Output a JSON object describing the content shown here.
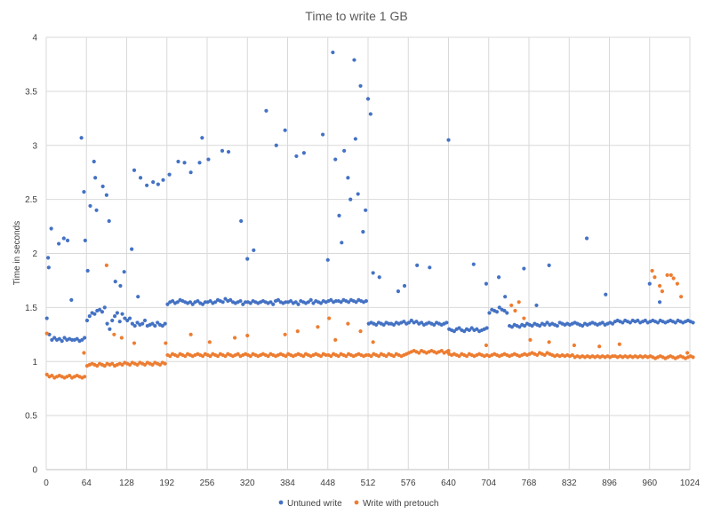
{
  "chart_data": {
    "type": "scatter",
    "title": "Time to write 1 GB",
    "xlabel": "",
    "ylabel": "Time in seconds",
    "xlim": [
      0,
      1024
    ],
    "ylim": [
      0,
      4
    ],
    "x_ticks": [
      "0",
      "64",
      "128",
      "192",
      "256",
      "320",
      "384",
      "448",
      "512",
      "576",
      "640",
      "704",
      "768",
      "832",
      "896",
      "960",
      "1024"
    ],
    "y_ticks": [
      "0",
      "0.5",
      "1",
      "1.5",
      "2",
      "2.5",
      "3",
      "3.5",
      "4"
    ],
    "grid": true,
    "legend_position": "bottom",
    "colors": {
      "untuned": "#4472c4",
      "pretouch": "#ed7d31",
      "grid": "#d9d9d9",
      "axis": "#bfbfbf"
    },
    "sample_step": 4,
    "series": [
      {
        "name": "Untuned write",
        "key": "untuned",
        "values": [
          1.4,
          1.25,
          1.2,
          1.22,
          1.2,
          1.21,
          1.19,
          1.22,
          1.2,
          1.21,
          1.2,
          1.2,
          1.21,
          1.19,
          1.2,
          1.22,
          1.38,
          1.42,
          1.45,
          1.44,
          1.47,
          1.48,
          1.46,
          1.5,
          1.35,
          1.3,
          1.38,
          1.42,
          1.45,
          1.37,
          1.44,
          1.4,
          1.38,
          1.4,
          1.35,
          1.33,
          1.36,
          1.34,
          1.35,
          1.38,
          1.33,
          1.34,
          1.35,
          1.33,
          1.36,
          1.34,
          1.33,
          1.35,
          1.53,
          1.55,
          1.56,
          1.54,
          1.55,
          1.57,
          1.56,
          1.55,
          1.54,
          1.55,
          1.53,
          1.55,
          1.56,
          1.54,
          1.53,
          1.55,
          1.55,
          1.56,
          1.54,
          1.55,
          1.57,
          1.56,
          1.55,
          1.58,
          1.56,
          1.57,
          1.55,
          1.54,
          1.55,
          1.56,
          1.53,
          1.55,
          1.55,
          1.54,
          1.56,
          1.55,
          1.54,
          1.55,
          1.56,
          1.55,
          1.54,
          1.55,
          1.53,
          1.56,
          1.57,
          1.55,
          1.54,
          1.55,
          1.55,
          1.56,
          1.54,
          1.55,
          1.53,
          1.56,
          1.55,
          1.54,
          1.55,
          1.57,
          1.54,
          1.56,
          1.55,
          1.54,
          1.56,
          1.55,
          1.56,
          1.57,
          1.55,
          1.56,
          1.56,
          1.55,
          1.57,
          1.56,
          1.55,
          1.57,
          1.56,
          1.55,
          1.57,
          1.56,
          1.55,
          1.56,
          1.35,
          1.36,
          1.35,
          1.34,
          1.36,
          1.35,
          1.34,
          1.36,
          1.35,
          1.35,
          1.34,
          1.36,
          1.35,
          1.36,
          1.37,
          1.35,
          1.36,
          1.38,
          1.36,
          1.37,
          1.35,
          1.36,
          1.34,
          1.35,
          1.36,
          1.35,
          1.34,
          1.36,
          1.35,
          1.34,
          1.35,
          1.36,
          1.3,
          1.29,
          1.28,
          1.3,
          1.31,
          1.29,
          1.28,
          1.3,
          1.29,
          1.31,
          1.29,
          1.3,
          1.28,
          1.29,
          1.3,
          1.31,
          1.45,
          1.48,
          1.47,
          1.46,
          1.5,
          1.48,
          1.47,
          1.45,
          1.33,
          1.32,
          1.34,
          1.33,
          1.32,
          1.34,
          1.33,
          1.35,
          1.34,
          1.33,
          1.35,
          1.34,
          1.33,
          1.35,
          1.34,
          1.36,
          1.34,
          1.35,
          1.34,
          1.33,
          1.36,
          1.35,
          1.34,
          1.35,
          1.34,
          1.35,
          1.36,
          1.35,
          1.34,
          1.33,
          1.35,
          1.34,
          1.35,
          1.36,
          1.35,
          1.34,
          1.35,
          1.36,
          1.34,
          1.35,
          1.36,
          1.35,
          1.37,
          1.38,
          1.37,
          1.36,
          1.38,
          1.37,
          1.36,
          1.38,
          1.37,
          1.38,
          1.36,
          1.37,
          1.38,
          1.36,
          1.37,
          1.38,
          1.37,
          1.36,
          1.38,
          1.37,
          1.36,
          1.37,
          1.38,
          1.37,
          1.36,
          1.38,
          1.37,
          1.36,
          1.37,
          1.38,
          1.37,
          1.36
        ]
      },
      {
        "name": "Write with pretouch",
        "key": "pretouch",
        "values": [
          0.88,
          0.86,
          0.87,
          0.85,
          0.86,
          0.87,
          0.86,
          0.85,
          0.86,
          0.87,
          0.85,
          0.86,
          0.87,
          0.86,
          0.85,
          0.86,
          0.96,
          0.97,
          0.98,
          0.97,
          0.96,
          0.98,
          0.97,
          0.96,
          0.98,
          0.97,
          0.98,
          0.96,
          0.97,
          0.98,
          0.97,
          0.99,
          0.98,
          0.97,
          0.99,
          0.98,
          0.97,
          0.99,
          0.98,
          0.97,
          0.99,
          0.98,
          0.97,
          0.99,
          0.98,
          0.97,
          0.99,
          0.98,
          1.06,
          1.05,
          1.07,
          1.06,
          1.05,
          1.07,
          1.06,
          1.05,
          1.07,
          1.06,
          1.05,
          1.06,
          1.07,
          1.06,
          1.05,
          1.07,
          1.06,
          1.05,
          1.07,
          1.06,
          1.05,
          1.07,
          1.06,
          1.05,
          1.07,
          1.06,
          1.05,
          1.06,
          1.07,
          1.05,
          1.06,
          1.07,
          1.06,
          1.05,
          1.07,
          1.06,
          1.05,
          1.06,
          1.07,
          1.06,
          1.05,
          1.07,
          1.06,
          1.05,
          1.06,
          1.07,
          1.06,
          1.05,
          1.07,
          1.06,
          1.05,
          1.06,
          1.07,
          1.06,
          1.05,
          1.07,
          1.06,
          1.05,
          1.06,
          1.07,
          1.06,
          1.05,
          1.07,
          1.06,
          1.06,
          1.05,
          1.07,
          1.06,
          1.05,
          1.07,
          1.06,
          1.05,
          1.07,
          1.06,
          1.05,
          1.06,
          1.07,
          1.06,
          1.05,
          1.06,
          1.06,
          1.05,
          1.07,
          1.06,
          1.05,
          1.07,
          1.06,
          1.05,
          1.07,
          1.06,
          1.05,
          1.07,
          1.06,
          1.05,
          1.06,
          1.07,
          1.08,
          1.09,
          1.1,
          1.09,
          1.08,
          1.1,
          1.09,
          1.08,
          1.09,
          1.1,
          1.09,
          1.08,
          1.09,
          1.1,
          1.08,
          1.09,
          1.07,
          1.06,
          1.07,
          1.06,
          1.05,
          1.07,
          1.06,
          1.05,
          1.07,
          1.06,
          1.05,
          1.06,
          1.07,
          1.06,
          1.05,
          1.06,
          1.05,
          1.06,
          1.07,
          1.06,
          1.05,
          1.06,
          1.07,
          1.06,
          1.05,
          1.06,
          1.07,
          1.06,
          1.05,
          1.06,
          1.07,
          1.06,
          1.07,
          1.08,
          1.07,
          1.06,
          1.08,
          1.07,
          1.06,
          1.08,
          1.07,
          1.06,
          1.05,
          1.06,
          1.05,
          1.06,
          1.05,
          1.06,
          1.05,
          1.06,
          1.04,
          1.05,
          1.04,
          1.05,
          1.04,
          1.05,
          1.04,
          1.05,
          1.04,
          1.05,
          1.04,
          1.05,
          1.04,
          1.05,
          1.04,
          1.05,
          1.05,
          1.04,
          1.05,
          1.04,
          1.05,
          1.04,
          1.05,
          1.04,
          1.05,
          1.04,
          1.05,
          1.04,
          1.05,
          1.04,
          1.05,
          1.04,
          1.03,
          1.04,
          1.05,
          1.04,
          1.03,
          1.04,
          1.05,
          1.04,
          1.03,
          1.04,
          1.05,
          1.04,
          1.03,
          1.04,
          1.05,
          1.04
        ]
      }
    ],
    "outliers": {
      "untuned": [
        [
          3,
          1.96
        ],
        [
          4,
          1.87
        ],
        [
          8,
          2.23
        ],
        [
          20,
          2.09
        ],
        [
          28,
          2.14
        ],
        [
          34,
          2.12
        ],
        [
          40,
          1.57
        ],
        [
          56,
          3.07
        ],
        [
          60,
          2.57
        ],
        [
          62,
          2.12
        ],
        [
          66,
          1.84
        ],
        [
          70,
          2.44
        ],
        [
          76,
          2.85
        ],
        [
          78,
          2.7
        ],
        [
          80,
          2.4
        ],
        [
          90,
          2.62
        ],
        [
          96,
          2.54
        ],
        [
          100,
          2.3
        ],
        [
          110,
          1.74
        ],
        [
          118,
          1.7
        ],
        [
          124,
          1.83
        ],
        [
          136,
          2.04
        ],
        [
          140,
          2.77
        ],
        [
          146,
          1.6
        ],
        [
          150,
          2.7
        ],
        [
          160,
          2.63
        ],
        [
          170,
          2.66
        ],
        [
          178,
          2.64
        ],
        [
          186,
          2.68
        ],
        [
          196,
          2.73
        ],
        [
          210,
          2.85
        ],
        [
          220,
          2.84
        ],
        [
          230,
          2.75
        ],
        [
          244,
          2.84
        ],
        [
          248,
          3.07
        ],
        [
          258,
          2.87
        ],
        [
          280,
          2.95
        ],
        [
          290,
          2.94
        ],
        [
          310,
          2.3
        ],
        [
          320,
          1.95
        ],
        [
          330,
          2.03
        ],
        [
          350,
          3.32
        ],
        [
          366,
          3.0
        ],
        [
          380,
          3.14
        ],
        [
          398,
          2.9
        ],
        [
          410,
          2.93
        ],
        [
          440,
          3.1
        ],
        [
          448,
          1.94
        ],
        [
          456,
          3.86
        ],
        [
          460,
          2.87
        ],
        [
          466,
          2.35
        ],
        [
          470,
          2.1
        ],
        [
          474,
          2.95
        ],
        [
          480,
          2.7
        ],
        [
          484,
          2.5
        ],
        [
          490,
          3.79
        ],
        [
          492,
          3.06
        ],
        [
          496,
          2.55
        ],
        [
          500,
          3.55
        ],
        [
          504,
          2.2
        ],
        [
          508,
          2.4
        ],
        [
          512,
          3.43
        ],
        [
          516,
          3.29
        ],
        [
          520,
          1.82
        ],
        [
          530,
          1.78
        ],
        [
          560,
          1.65
        ],
        [
          570,
          1.7
        ],
        [
          590,
          1.89
        ],
        [
          610,
          1.87
        ],
        [
          640,
          3.05
        ],
        [
          680,
          1.9
        ],
        [
          700,
          1.72
        ],
        [
          720,
          1.78
        ],
        [
          730,
          1.6
        ],
        [
          760,
          1.86
        ],
        [
          780,
          1.52
        ],
        [
          800,
          1.89
        ],
        [
          860,
          2.14
        ],
        [
          890,
          1.62
        ],
        [
          960,
          1.72
        ],
        [
          976,
          1.55
        ]
      ],
      "pretouch": [
        [
          1,
          1.26
        ],
        [
          60,
          1.08
        ],
        [
          96,
          1.89
        ],
        [
          108,
          1.25
        ],
        [
          120,
          1.22
        ],
        [
          140,
          1.17
        ],
        [
          190,
          1.17
        ],
        [
          230,
          1.25
        ],
        [
          260,
          1.18
        ],
        [
          300,
          1.22
        ],
        [
          320,
          1.24
        ],
        [
          380,
          1.25
        ],
        [
          400,
          1.28
        ],
        [
          432,
          1.32
        ],
        [
          450,
          1.4
        ],
        [
          460,
          1.2
        ],
        [
          480,
          1.35
        ],
        [
          500,
          1.28
        ],
        [
          520,
          1.18
        ],
        [
          640,
          1.1
        ],
        [
          700,
          1.15
        ],
        [
          740,
          1.52
        ],
        [
          746,
          1.47
        ],
        [
          752,
          1.55
        ],
        [
          760,
          1.4
        ],
        [
          770,
          1.2
        ],
        [
          800,
          1.18
        ],
        [
          840,
          1.15
        ],
        [
          880,
          1.14
        ],
        [
          912,
          1.16
        ],
        [
          964,
          1.84
        ],
        [
          968,
          1.78
        ],
        [
          976,
          1.7
        ],
        [
          980,
          1.65
        ],
        [
          988,
          1.8
        ],
        [
          994,
          1.8
        ],
        [
          998,
          1.77
        ],
        [
          1004,
          1.72
        ],
        [
          1010,
          1.6
        ],
        [
          1020,
          1.08
        ]
      ]
    }
  }
}
